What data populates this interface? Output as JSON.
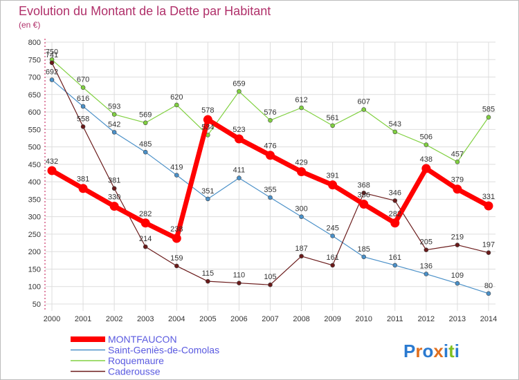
{
  "chart_data": {
    "type": "line",
    "title": "Evolution du Montant de la Dette par Habitant",
    "subtitle": "(en €)",
    "x": [
      "2000",
      "2001",
      "2002",
      "2003",
      "2004",
      "2005",
      "2006",
      "2007",
      "2008",
      "2009",
      "2010",
      "2011",
      "2012",
      "2013",
      "2014"
    ],
    "yticks": [
      50,
      100,
      150,
      200,
      250,
      300,
      350,
      400,
      450,
      500,
      550,
      600,
      650,
      700,
      750,
      800
    ],
    "ylim": [
      50,
      800
    ],
    "grid": true,
    "legend_position": "bottom-left",
    "series": [
      {
        "name": "MONTFAUCON",
        "color": "#ff0000",
        "width": 7,
        "values": [
          432,
          381,
          330,
          282,
          238,
          578,
          523,
          476,
          429,
          391,
          336,
          282,
          438,
          379,
          331
        ]
      },
      {
        "name": "Saint-Geniès-de-Comolas",
        "color": "#4a90c8",
        "width": 1.2,
        "values": [
          692,
          616,
          542,
          485,
          419,
          351,
          411,
          355,
          300,
          245,
          185,
          161,
          136,
          109,
          80
        ]
      },
      {
        "name": "Roquemaure",
        "color": "#80d040",
        "width": 1.2,
        "values": [
          750,
          670,
          593,
          569,
          620,
          534,
          659,
          576,
          612,
          561,
          607,
          543,
          506,
          457,
          585
        ]
      },
      {
        "name": "Caderousse",
        "color": "#6a1a1a",
        "width": 1.2,
        "values": [
          741,
          558,
          381,
          214,
          159,
          115,
          110,
          105,
          187,
          161,
          368,
          346,
          205,
          219,
          197
        ]
      }
    ]
  },
  "logo": {
    "text": "Proxiti",
    "letters": [
      "P",
      "r",
      "o",
      "x",
      "i",
      "t",
      "i"
    ],
    "colors": [
      "#2a7ad0",
      "#e07020",
      "#2a7ad0",
      "#e07020",
      "#2a7ad0",
      "#80c020",
      "#2a7ad0"
    ]
  }
}
